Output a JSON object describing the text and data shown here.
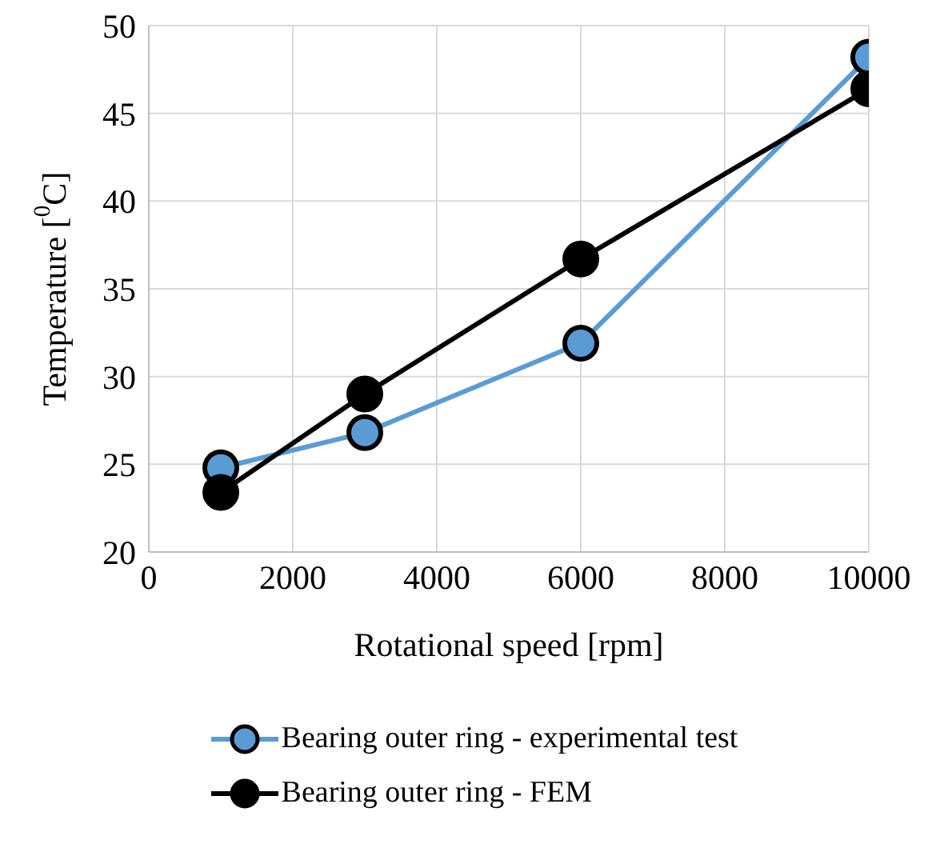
{
  "chart_data": {
    "type": "line",
    "xlabel": "Rotational speed [rpm]",
    "ylabel": "Temperature [$^{0}$C]",
    "x": [
      1000,
      3000,
      6000,
      10000
    ],
    "series": [
      {
        "name": "Bearing outer ring - experimental test",
        "color": "#5b9bd5",
        "values": [
          24.8,
          26.8,
          31.9,
          48.2
        ]
      },
      {
        "name": "Bearing outer ring - FEM",
        "color": "#000000",
        "values": [
          23.4,
          29.0,
          36.7,
          46.4
        ]
      }
    ],
    "xlim": [
      0,
      10000
    ],
    "xticks": [
      0,
      2000,
      4000,
      6000,
      8000,
      10000
    ],
    "ylim": [
      20,
      50
    ],
    "yticks": [
      20,
      25,
      30,
      35,
      40,
      45,
      50
    ],
    "grid": true,
    "legend": "bottom",
    "marker": "circle",
    "line_style": "solid"
  }
}
